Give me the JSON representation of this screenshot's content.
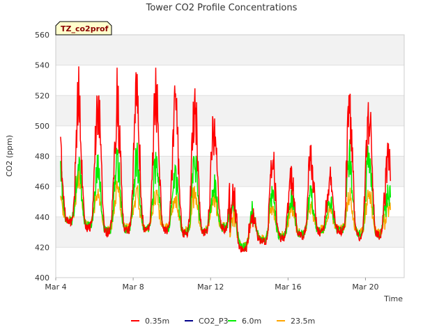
{
  "chart_data": {
    "type": "line",
    "title": "Tower CO2 Profile Concentrations",
    "xlabel": "Time",
    "ylabel": "CO2 (ppm)",
    "tag": "TZ_co2prof",
    "ylim": [
      400,
      560
    ],
    "yticks": [
      400,
      420,
      440,
      460,
      480,
      500,
      520,
      540,
      560
    ],
    "xlim_days": [
      4,
      22
    ],
    "xticks": [
      {
        "day": 4,
        "label": "Mar 4"
      },
      {
        "day": 8,
        "label": "Mar 8"
      },
      {
        "day": 12,
        "label": "Mar 12"
      },
      {
        "day": 16,
        "label": "Mar 16"
      },
      {
        "day": 20,
        "label": "Mar 20"
      }
    ],
    "x_range_days": [
      4.25,
      21.3
    ],
    "grid": "horizontal bands",
    "legend_position": "bottom",
    "series": [
      {
        "name": "0.35m",
        "color": "#ff0000",
        "daily_min": [
          437,
          433,
          430,
          431,
          432,
          431,
          429,
          430,
          432,
          418,
          424,
          426,
          428,
          430,
          431,
          427,
          428,
          423,
          426
        ],
        "daily_max": [
          505,
          538,
          540,
          543,
          540,
          547,
          532,
          540,
          520,
          462,
          445,
          500,
          478,
          495,
          472,
          532,
          533,
          500,
          522
        ]
      },
      {
        "name": "CO2_P3",
        "color": "#00008b",
        "daily_min": [],
        "daily_max": []
      },
      {
        "name": "6.0m",
        "color": "#00ee00",
        "daily_min": [
          437,
          434,
          431,
          432,
          432,
          432,
          430,
          431,
          433,
          420,
          425,
          427,
          429,
          431,
          431,
          429,
          429,
          424,
          427
        ],
        "daily_max": [
          482,
          485,
          482,
          489,
          490,
          487,
          478,
          489,
          468,
          455,
          450,
          462,
          458,
          460,
          455,
          493,
          495,
          468,
          472
        ]
      },
      {
        "name": "23.5m",
        "color": "#ffa500",
        "daily_min": [
          438,
          435,
          432,
          433,
          433,
          433,
          431,
          432,
          434,
          421,
          426,
          428,
          430,
          432,
          432,
          430,
          430,
          425,
          428
        ],
        "daily_max": [
          460,
          475,
          462,
          465,
          462,
          460,
          457,
          463,
          458,
          446,
          444,
          452,
          448,
          450,
          448,
          460,
          462,
          454,
          458
        ]
      }
    ]
  }
}
